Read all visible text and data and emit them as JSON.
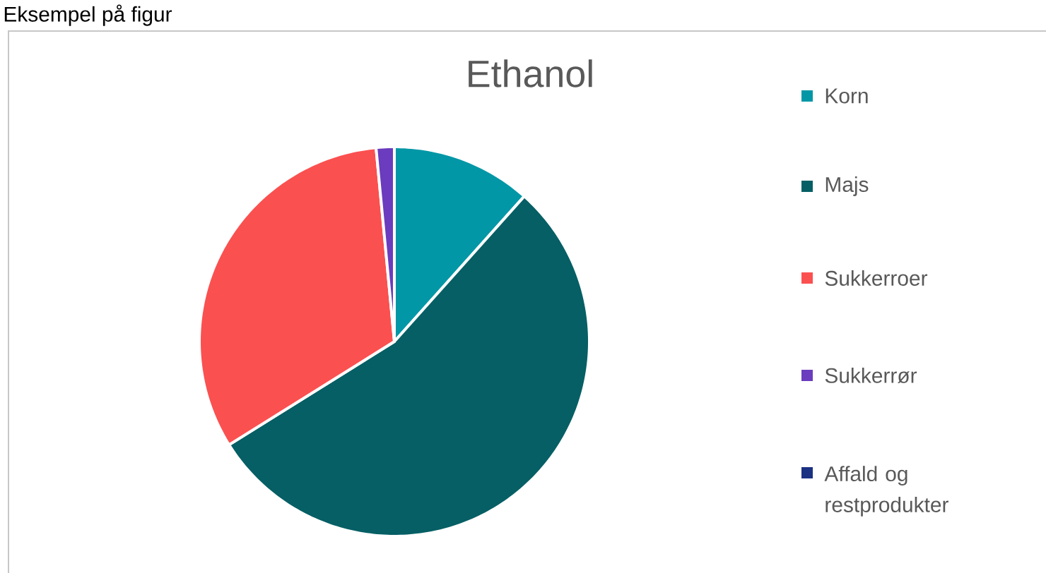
{
  "chart_data": {
    "type": "pie",
    "title": "Ethanol",
    "categories": [
      "Korn",
      "Majs",
      "Sukkerroer",
      "Sukkerrør",
      "Affald og restprodukter"
    ],
    "values": [
      11.6,
      54.5,
      32.4,
      1.5,
      0
    ],
    "colors": [
      "#0297a6",
      "#055f65",
      "#fb5050",
      "#6b3cbd",
      "#1b3182"
    ],
    "legend": "right",
    "annotations": [
      "Eksempel på figur"
    ]
  }
}
